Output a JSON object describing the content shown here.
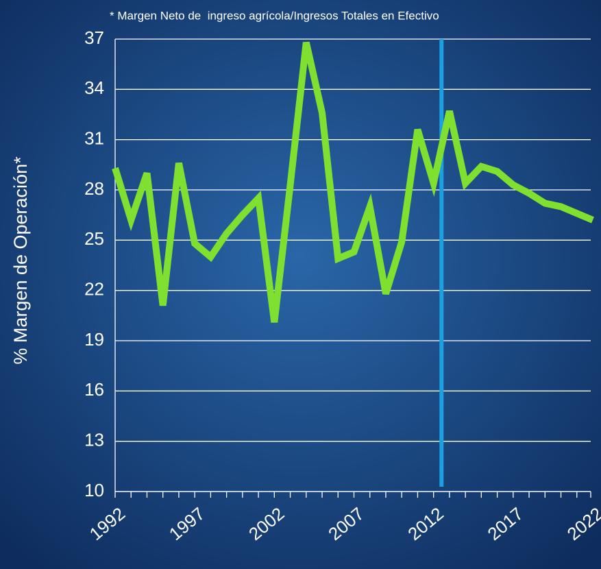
{
  "chart_data": {
    "type": "line",
    "title": "* Margen Neto de  ingreso agrícola/Ingresos Totales en Efectivo",
    "ylabel": "% Margen de Operación*",
    "x": [
      1992,
      1993,
      1994,
      1995,
      1996,
      1997,
      1998,
      1999,
      2000,
      2001,
      2002,
      2003,
      2004,
      2005,
      2006,
      2007,
      2008,
      2009,
      2010,
      2011,
      2012,
      2013,
      2014,
      2015,
      2016,
      2017,
      2018,
      2019,
      2020,
      2021,
      2022
    ],
    "series": [
      {
        "color": "#7fe030",
        "values": [
          29.3,
          26.2,
          29.0,
          21.1,
          29.6,
          24.8,
          24.0,
          25.4,
          26.5,
          27.5,
          20.1,
          28.3,
          36.8,
          32.6,
          23.9,
          24.3,
          27.0,
          21.8,
          24.9,
          31.6,
          28.4,
          32.7,
          28.4,
          29.4,
          29.1,
          28.3,
          27.8,
          27.2,
          27.0,
          26.6,
          26.2
        ]
      }
    ],
    "xlim": [
      1992,
      2022
    ],
    "xticks": [
      1992,
      1997,
      2002,
      2007,
      2012,
      2017,
      2022
    ],
    "ylim": [
      10,
      37
    ],
    "yticks": [
      10,
      13,
      16,
      19,
      22,
      25,
      28,
      31,
      34,
      37
    ],
    "grid": true,
    "vline": {
      "x": 2012.5,
      "color": "#1ba1e2"
    }
  }
}
